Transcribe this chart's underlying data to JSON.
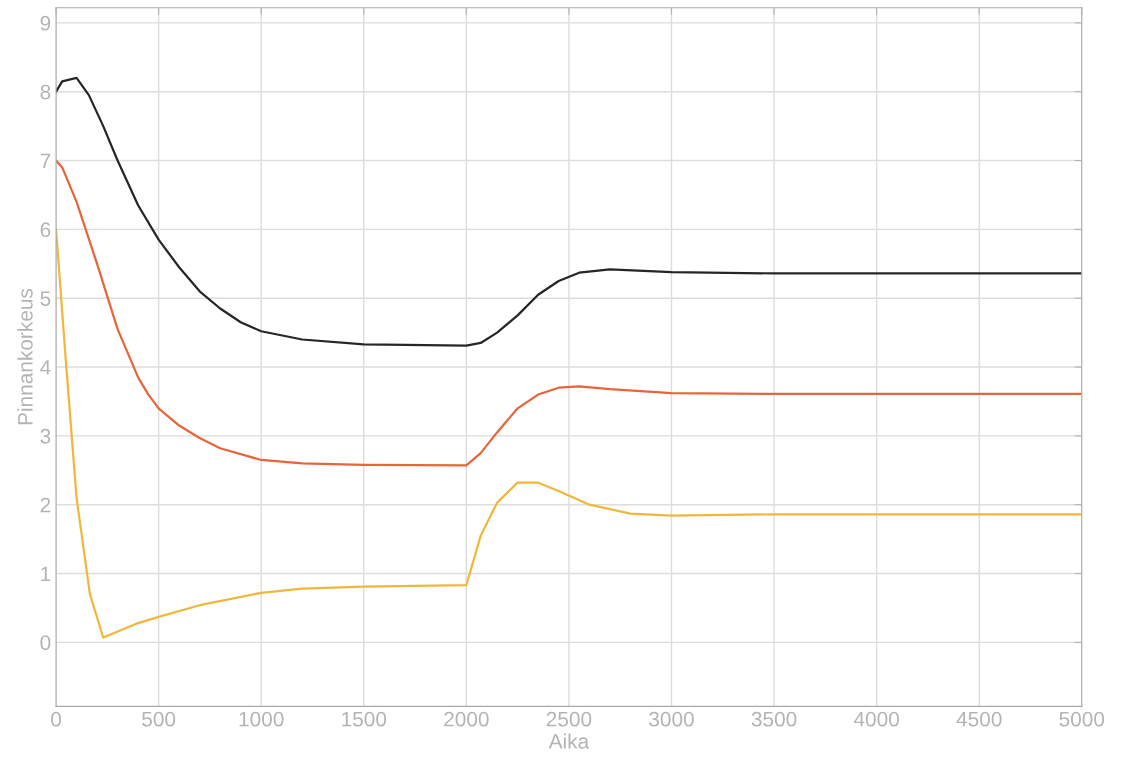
{
  "chart_data": {
    "type": "line",
    "xlabel": "Aika",
    "ylabel": "Pinnankorkeus",
    "xlim": [
      0,
      5000
    ],
    "ylim": [
      -0.93,
      9.22
    ],
    "xticks": [
      0,
      500,
      1000,
      1500,
      2000,
      2500,
      3000,
      3500,
      4000,
      4500,
      5000
    ],
    "yticks": [
      0,
      1,
      2,
      3,
      4,
      5,
      6,
      7,
      8,
      9
    ],
    "grid": true,
    "marker": "none",
    "line_style": "solid",
    "series": [
      {
        "color": "#262626",
        "x": [
          0,
          30,
          100,
          160,
          230,
          300,
          400,
          500,
          600,
          700,
          800,
          900,
          1000,
          1200,
          1500,
          2000,
          2070,
          2150,
          2250,
          2350,
          2450,
          2550,
          2700,
          3000,
          3500,
          5000
        ],
        "values": [
          8.0,
          8.15,
          8.2,
          7.95,
          7.5,
          7.0,
          6.35,
          5.85,
          5.45,
          5.1,
          4.85,
          4.65,
          4.52,
          4.4,
          4.33,
          4.31,
          4.35,
          4.5,
          4.75,
          5.05,
          5.25,
          5.37,
          5.42,
          5.38,
          5.36,
          5.36
        ]
      },
      {
        "color": "#e6653a",
        "x": [
          0,
          30,
          100,
          200,
          300,
          400,
          450,
          500,
          600,
          700,
          800,
          1000,
          1200,
          1500,
          2000,
          2070,
          2150,
          2250,
          2350,
          2450,
          2550,
          2700,
          3000,
          3500,
          5000
        ],
        "values": [
          7.0,
          6.9,
          6.4,
          5.5,
          4.55,
          3.85,
          3.6,
          3.4,
          3.15,
          2.97,
          2.82,
          2.65,
          2.6,
          2.58,
          2.57,
          2.75,
          3.05,
          3.4,
          3.6,
          3.7,
          3.72,
          3.68,
          3.62,
          3.61,
          3.61
        ]
      },
      {
        "color": "#f0b73a",
        "x": [
          0,
          50,
          100,
          165,
          230,
          400,
          500,
          700,
          1000,
          1200,
          1500,
          2000,
          2070,
          2150,
          2250,
          2350,
          2450,
          2600,
          2800,
          3000,
          3500,
          5000
        ],
        "values": [
          6.0,
          4.0,
          2.1,
          0.7,
          0.07,
          0.28,
          0.37,
          0.54,
          0.72,
          0.78,
          0.81,
          0.83,
          1.55,
          2.03,
          2.32,
          2.32,
          2.2,
          2.0,
          1.87,
          1.84,
          1.86,
          1.86
        ]
      }
    ]
  }
}
